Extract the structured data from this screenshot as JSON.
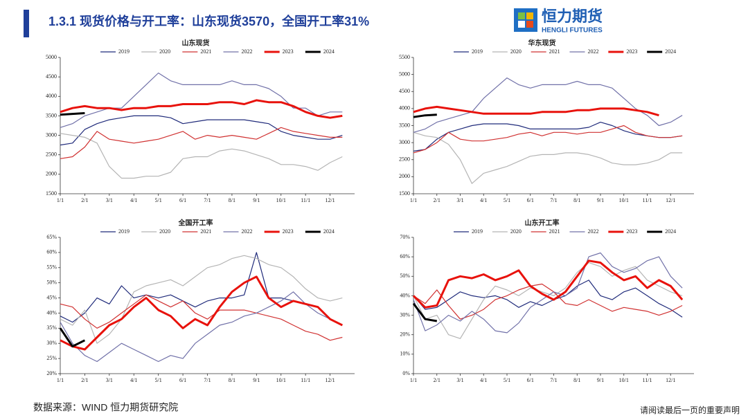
{
  "header": {
    "title": "1.3.1 现货价格与开工率：山东现货3570，全国开工率31%"
  },
  "logo": {
    "name": "恒力期货",
    "subtitle": "HENGLI FUTURES"
  },
  "footer": {
    "source": "数据来源：WIND 恒力期货研究院",
    "disclaimer": "请阅读最后一页的重要声明"
  },
  "chart_data": [
    {
      "type": "line",
      "title": "山东现货",
      "categories": [
        "1/1",
        null,
        "2/1",
        null,
        "3/1",
        null,
        "4/1",
        null,
        "5/1",
        null,
        "6/1",
        null,
        "7/1",
        null,
        "8/1",
        null,
        "9/1",
        null,
        "10/1",
        null,
        "11/1",
        null,
        "12/1",
        null
      ],
      "ylim": [
        1500,
        5000
      ],
      "yticks": [
        1500,
        2000,
        2500,
        3000,
        3500,
        4000,
        4500,
        5000
      ],
      "series": [
        {
          "name": "2019",
          "color": "#1f2a7a",
          "values": [
            2750,
            2800,
            3150,
            3300,
            3400,
            3450,
            3500,
            3500,
            3500,
            3450,
            3300,
            3350,
            3400,
            3400,
            3400,
            3400,
            3350,
            3300,
            3100,
            3000,
            2950,
            2900,
            2900,
            3000
          ]
        },
        {
          "name": "2020",
          "color": "#b4b4b4",
          "values": [
            3050,
            3000,
            2950,
            2800,
            2200,
            1900,
            1900,
            1950,
            1950,
            2050,
            2400,
            2450,
            2450,
            2600,
            2650,
            2600,
            2500,
            2400,
            2250,
            2250,
            2200,
            2100,
            2300,
            2450
          ]
        },
        {
          "name": "2021",
          "color": "#d03030",
          "values": [
            2400,
            2450,
            2700,
            3100,
            2900,
            2850,
            2800,
            2850,
            2900,
            3000,
            3100,
            2900,
            3000,
            2950,
            3000,
            2950,
            2900,
            3050,
            3200,
            3100,
            3050,
            3000,
            2950,
            2950
          ]
        },
        {
          "name": "2022",
          "color": "#7070a8",
          "values": [
            3200,
            3300,
            3500,
            3600,
            3700,
            3700,
            4000,
            4300,
            4600,
            4400,
            4300,
            4300,
            4300,
            4300,
            4400,
            4300,
            4300,
            4200,
            4000,
            3700,
            3700,
            3500,
            3600,
            3600
          ]
        },
        {
          "name": "2023",
          "color": "#e8120c",
          "values": [
            3600,
            3700,
            3750,
            3700,
            3700,
            3650,
            3700,
            3700,
            3750,
            3750,
            3800,
            3800,
            3800,
            3850,
            3850,
            3800,
            3900,
            3850,
            3850,
            3750,
            3600,
            3500,
            3450,
            3500
          ]
        },
        {
          "name": "2024",
          "color": "#000000",
          "values": [
            3530,
            3550,
            3570,
            null,
            null,
            null,
            null,
            null,
            null,
            null,
            null,
            null,
            null,
            null,
            null,
            null,
            null,
            null,
            null,
            null,
            null,
            null,
            null,
            null
          ]
        }
      ]
    },
    {
      "type": "line",
      "title": "华东现货",
      "categories": [
        "1/1",
        null,
        "2/1",
        null,
        "3/1",
        null,
        "4/1",
        null,
        "5/1",
        null,
        "6/1",
        null,
        "7/1",
        null,
        "8/1",
        null,
        "9/1",
        null,
        "10/1",
        null,
        "11/1",
        null,
        "12/1",
        null
      ],
      "ylim": [
        1500,
        5500
      ],
      "yticks": [
        1500,
        2000,
        2500,
        3000,
        3500,
        4000,
        4500,
        5000,
        5500
      ],
      "series": [
        {
          "name": "2019",
          "color": "#1f2a7a",
          "values": [
            2750,
            2800,
            3100,
            3300,
            3400,
            3500,
            3550,
            3550,
            3550,
            3500,
            3400,
            3400,
            3400,
            3400,
            3400,
            3450,
            3600,
            3500,
            3350,
            3250,
            3200,
            3150,
            3150,
            3200
          ]
        },
        {
          "name": "2020",
          "color": "#b4b4b4",
          "values": [
            3300,
            3200,
            3150,
            2950,
            2500,
            1800,
            2100,
            2200,
            2300,
            2450,
            2600,
            2650,
            2650,
            2700,
            2700,
            2650,
            2550,
            2400,
            2350,
            2350,
            2400,
            2500,
            2700,
            2700
          ]
        },
        {
          "name": "2021",
          "color": "#d03030",
          "values": [
            2700,
            2800,
            3000,
            3300,
            3100,
            3050,
            3050,
            3100,
            3150,
            3250,
            3300,
            3200,
            3300,
            3300,
            3250,
            3300,
            3300,
            3400,
            3500,
            3300,
            3200,
            3150,
            3150,
            3200
          ]
        },
        {
          "name": "2022",
          "color": "#7070a8",
          "values": [
            3300,
            3400,
            3600,
            3700,
            3800,
            3900,
            4300,
            4600,
            4900,
            4700,
            4600,
            4700,
            4700,
            4700,
            4800,
            4700,
            4700,
            4600,
            4300,
            4000,
            3800,
            3500,
            3600,
            3800
          ]
        },
        {
          "name": "2023",
          "color": "#e8120c",
          "values": [
            3900,
            4000,
            4050,
            4000,
            3950,
            3900,
            3850,
            3850,
            3850,
            3850,
            3850,
            3900,
            3900,
            3900,
            3950,
            3950,
            4000,
            4000,
            4000,
            3950,
            3900,
            3800,
            null,
            null
          ]
        },
        {
          "name": "2024",
          "color": "#000000",
          "values": [
            3750,
            3800,
            3820,
            null,
            null,
            null,
            null,
            null,
            null,
            null,
            null,
            null,
            null,
            null,
            null,
            null,
            null,
            null,
            null,
            null,
            null,
            null,
            null,
            null
          ]
        }
      ]
    },
    {
      "type": "line",
      "title": "全国开工率",
      "categories": [
        "1/1",
        null,
        "2/1",
        null,
        "3/1",
        null,
        "4/1",
        null,
        "5/1",
        null,
        "6/1",
        null,
        "7/1",
        null,
        "8/1",
        null,
        "9/1",
        null,
        "10/1",
        null,
        "11/1",
        null,
        "12/1",
        null
      ],
      "ylim": [
        20,
        65
      ],
      "yticks": [
        {
          "value": 20,
          "label": "20%"
        },
        {
          "value": 25,
          "label": "25%"
        },
        {
          "value": 30,
          "label": "30%"
        },
        {
          "value": 35,
          "label": "35%"
        },
        {
          "value": 40,
          "label": "40%"
        },
        {
          "value": 45,
          "label": "45%"
        },
        {
          "value": 50,
          "label": "50%"
        },
        {
          "value": 55,
          "label": "55%"
        },
        {
          "value": 60,
          "label": "60%"
        },
        {
          "value": 65,
          "label": "65%"
        }
      ],
      "series": [
        {
          "name": "2019",
          "color": "#1f2a7a",
          "values": [
            39,
            37,
            40,
            45,
            43,
            49,
            45,
            46,
            45,
            46,
            44,
            42,
            44,
            45,
            45,
            46,
            60,
            45,
            45,
            44,
            43,
            42,
            38,
            36
          ]
        },
        {
          "name": "2020",
          "color": "#b4b4b4",
          "values": [
            38,
            36,
            41,
            30,
            33,
            38,
            47,
            49,
            50,
            51,
            49,
            52,
            55,
            56,
            58,
            59,
            58,
            56,
            55,
            52,
            48,
            45,
            44,
            45
          ]
        },
        {
          "name": "2021",
          "color": "#d03030",
          "values": [
            43,
            42,
            38,
            35,
            37,
            40,
            43,
            46,
            44,
            42,
            44,
            40,
            38,
            41,
            41,
            41,
            40,
            39,
            38,
            36,
            34,
            33,
            31,
            32
          ]
        },
        {
          "name": "2022",
          "color": "#7070a8",
          "values": [
            37,
            30,
            26,
            24,
            27,
            30,
            28,
            26,
            24,
            26,
            25,
            30,
            33,
            36,
            37,
            39,
            40,
            42,
            44,
            47,
            43,
            40,
            38,
            36
          ]
        },
        {
          "name": "2023",
          "color": "#e8120c",
          "values": [
            31,
            29,
            28,
            32,
            36,
            38,
            42,
            45,
            41,
            39,
            35,
            38,
            36,
            42,
            47,
            50,
            52,
            45,
            42,
            44,
            43,
            42,
            38,
            36
          ]
        },
        {
          "name": "2024",
          "color": "#000000",
          "values": [
            35,
            29,
            31,
            null,
            null,
            null,
            null,
            null,
            null,
            null,
            null,
            null,
            null,
            null,
            null,
            null,
            null,
            null,
            null,
            null,
            null,
            null,
            null,
            null
          ]
        }
      ]
    },
    {
      "type": "line",
      "title": "山东开工率",
      "categories": [
        "1/1",
        null,
        "2/1",
        null,
        "3/1",
        null,
        "4/1",
        null,
        "5/1",
        null,
        "6/1",
        null,
        "7/1",
        null,
        "8/1",
        null,
        "9/1",
        null,
        "10/1",
        null,
        "11/1",
        null,
        "12/1",
        null
      ],
      "ylim": [
        0,
        70
      ],
      "yticks": [
        {
          "value": 0,
          "label": "0%"
        },
        {
          "value": 10,
          "label": "10%"
        },
        {
          "value": 20,
          "label": "20%"
        },
        {
          "value": 30,
          "label": "30%"
        },
        {
          "value": 40,
          "label": "40%"
        },
        {
          "value": 50,
          "label": "50%"
        },
        {
          "value": 60,
          "label": "60%"
        },
        {
          "value": 70,
          "label": "70%"
        }
      ],
      "series": [
        {
          "name": "2019",
          "color": "#1f2a7a",
          "values": [
            40,
            33,
            34,
            38,
            42,
            40,
            39,
            40,
            38,
            34,
            37,
            35,
            38,
            40,
            45,
            48,
            40,
            38,
            42,
            44,
            40,
            36,
            33,
            29
          ]
        },
        {
          "name": "2020",
          "color": "#b4b4b4",
          "values": [
            40,
            28,
            30,
            20,
            18,
            28,
            38,
            45,
            43,
            40,
            44,
            42,
            40,
            44,
            52,
            57,
            55,
            50,
            53,
            55,
            48,
            45,
            42,
            40
          ]
        },
        {
          "name": "2021",
          "color": "#d03030",
          "values": [
            40,
            36,
            43,
            35,
            28,
            30,
            33,
            38,
            40,
            43,
            45,
            46,
            42,
            36,
            35,
            38,
            35,
            32,
            34,
            33,
            32,
            30,
            32,
            35
          ]
        },
        {
          "name": "2022",
          "color": "#7070a8",
          "values": [
            38,
            22,
            25,
            30,
            27,
            32,
            28,
            22,
            21,
            26,
            34,
            38,
            42,
            40,
            44,
            60,
            62,
            55,
            52,
            54,
            58,
            60,
            50,
            44
          ]
        },
        {
          "name": "2023",
          "color": "#e8120c",
          "values": [
            40,
            34,
            35,
            48,
            50,
            49,
            51,
            48,
            50,
            53,
            45,
            41,
            38,
            42,
            50,
            58,
            57,
            52,
            48,
            50,
            44,
            48,
            45,
            38
          ]
        },
        {
          "name": "2024",
          "color": "#000000",
          "values": [
            36,
            28,
            27,
            null,
            null,
            null,
            null,
            null,
            null,
            null,
            null,
            null,
            null,
            null,
            null,
            null,
            null,
            null,
            null,
            null,
            null,
            null,
            null,
            null
          ]
        }
      ]
    }
  ]
}
